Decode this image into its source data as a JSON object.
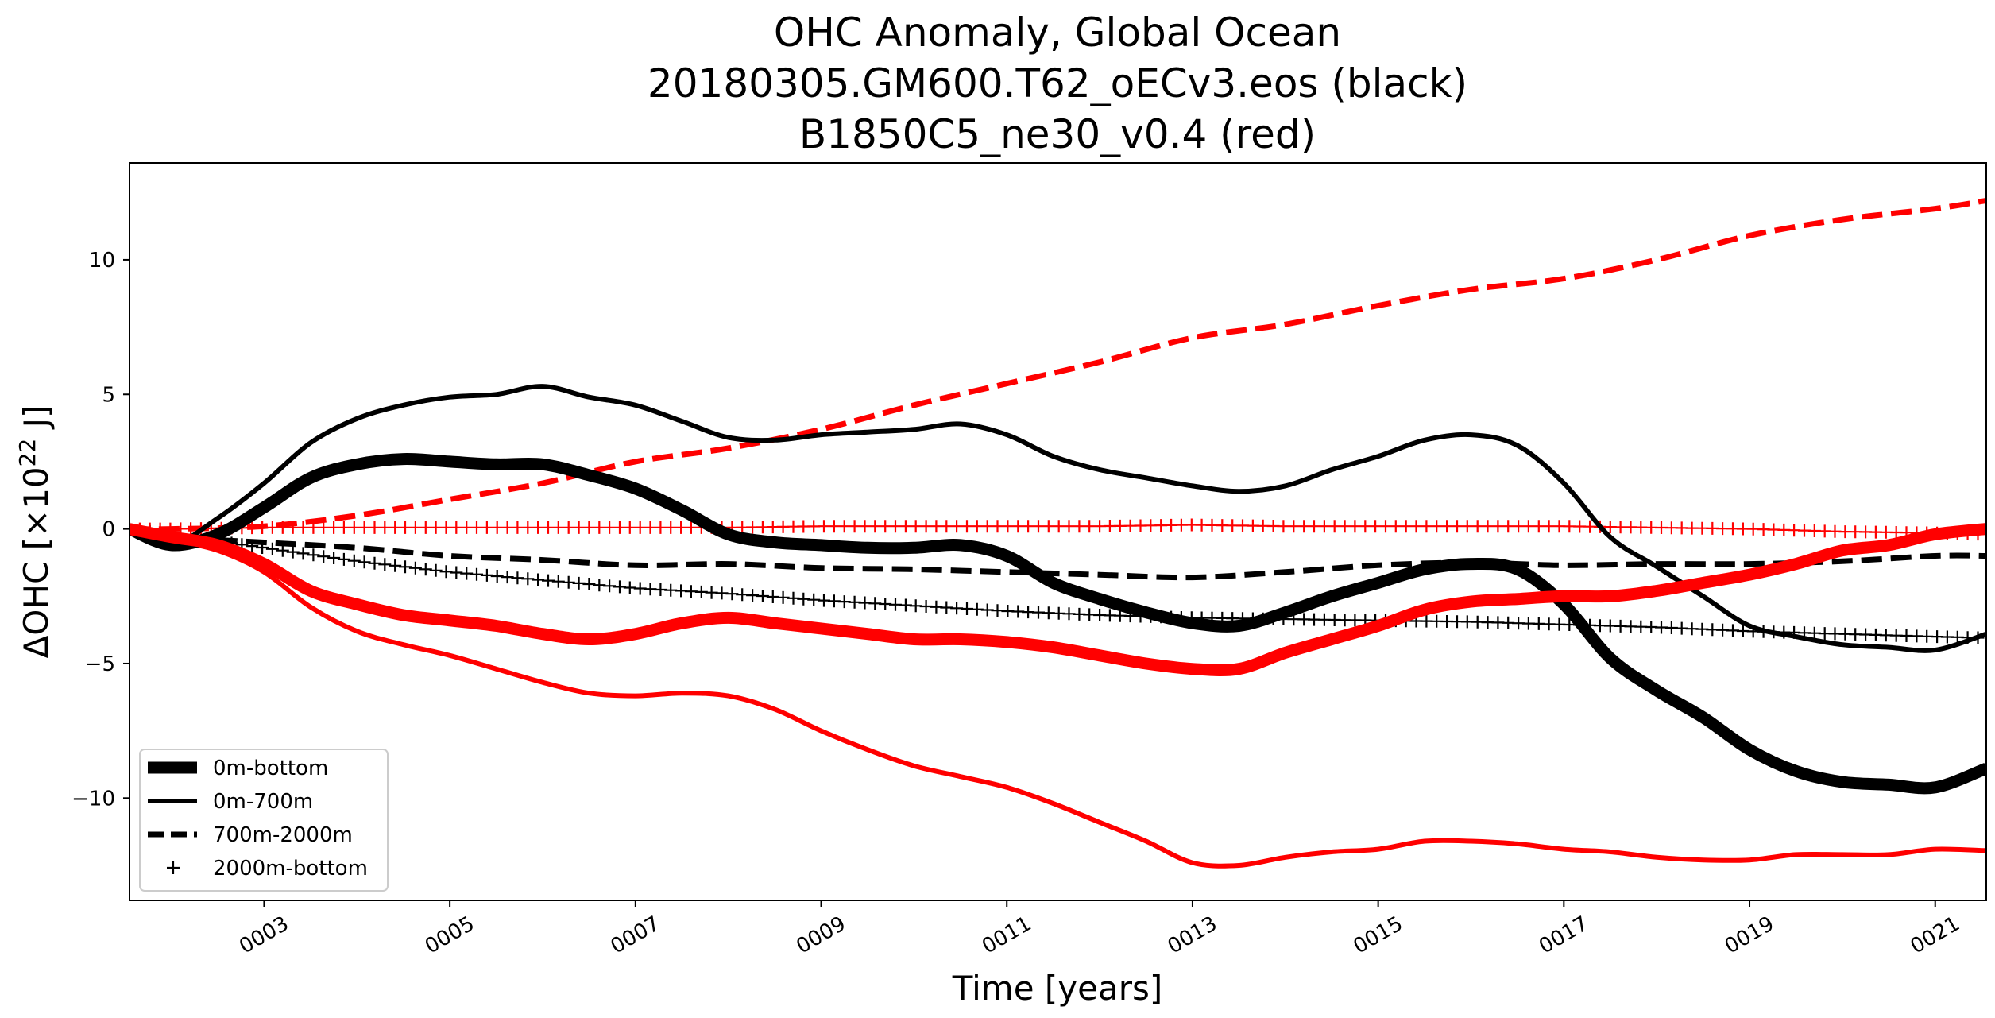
{
  "chart_data": {
    "type": "line",
    "title_lines": [
      "OHC Anomaly, Global Ocean",
      "20180305.GM600.T62_oECv3.eos (black)",
      "B1850C5_ne30_v0.4 (red)"
    ],
    "xlabel": "Time [years]",
    "ylabel_main": "ΔOHC [×10",
    "ylabel_sup": "22",
    "ylabel_end": " J]",
    "xlim": [
      1.55,
      21.55
    ],
    "ylim": [
      -13.8,
      13.6
    ],
    "x_ticks": [
      3,
      5,
      7,
      9,
      11,
      13,
      15,
      17,
      19,
      21
    ],
    "x_tick_labels": [
      "0003",
      "0005",
      "0007",
      "0009",
      "0011",
      "0013",
      "0015",
      "0017",
      "0019",
      "0021"
    ],
    "y_ticks": [
      -10,
      -5,
      0,
      5,
      10
    ],
    "y_tick_labels": [
      "−10",
      "−5",
      "0",
      "5",
      "10"
    ],
    "legend": {
      "position": "lower-left",
      "entries": [
        {
          "label": "0m-bottom",
          "style": "thick"
        },
        {
          "label": "0m-700m",
          "style": "solid"
        },
        {
          "label": "700m-2000m",
          "style": "dashed"
        },
        {
          "label": "2000m-bottom",
          "style": "plus"
        }
      ]
    },
    "series": [
      {
        "name": "black 0m-bottom",
        "color": "#000000",
        "style": "thick",
        "x": [
          1.55,
          2,
          2.5,
          3,
          3.5,
          4,
          4.5,
          5,
          5.5,
          6,
          6.5,
          7,
          7.5,
          8,
          8.5,
          9,
          9.5,
          10,
          10.5,
          11,
          11.5,
          12,
          12.5,
          13,
          13.5,
          14,
          14.5,
          15,
          15.5,
          16,
          16.5,
          17,
          17.5,
          18,
          18.5,
          19,
          19.5,
          20,
          20.5,
          21,
          21.55
        ],
        "y": [
          0,
          -0.6,
          -0.2,
          0.8,
          1.9,
          2.4,
          2.6,
          2.5,
          2.4,
          2.4,
          2,
          1.5,
          0.7,
          -0.2,
          -0.5,
          -0.6,
          -0.7,
          -0.7,
          -0.6,
          -1,
          -2,
          -2.6,
          -3.1,
          -3.5,
          -3.6,
          -3.1,
          -2.5,
          -2,
          -1.5,
          -1.3,
          -1.5,
          -2.8,
          -4.8,
          -6,
          -7,
          -8.2,
          -9,
          -9.4,
          -9.5,
          -9.6,
          -8.9
        ]
      },
      {
        "name": "black 0m-700m",
        "color": "#000000",
        "style": "solid",
        "x": [
          1.55,
          2,
          2.5,
          3,
          3.5,
          4,
          4.5,
          5,
          5.5,
          6,
          6.5,
          7,
          7.5,
          8,
          8.5,
          9,
          9.5,
          10,
          10.5,
          11,
          11.5,
          12,
          12.5,
          13,
          13.5,
          14,
          14.5,
          15,
          15.5,
          16,
          16.5,
          17,
          17.5,
          18,
          18.5,
          19,
          19.5,
          20,
          20.5,
          21,
          21.55
        ],
        "y": [
          0,
          -0.6,
          0.4,
          1.7,
          3.2,
          4.1,
          4.6,
          4.9,
          5,
          5.3,
          4.9,
          4.6,
          4,
          3.4,
          3.3,
          3.5,
          3.6,
          3.7,
          3.9,
          3.5,
          2.7,
          2.2,
          1.9,
          1.6,
          1.4,
          1.6,
          2.2,
          2.7,
          3.3,
          3.5,
          3.1,
          1.7,
          -0.3,
          -1.4,
          -2.5,
          -3.6,
          -4,
          -4.3,
          -4.4,
          -4.5,
          -3.9
        ]
      },
      {
        "name": "black 700m-2000m",
        "color": "#000000",
        "style": "dashed",
        "x": [
          1.55,
          2,
          3,
          4,
          5,
          6,
          7,
          8,
          9,
          10,
          11,
          12,
          13,
          14,
          15,
          16,
          17,
          18,
          19,
          20,
          21,
          21.55
        ],
        "y": [
          0,
          -0.3,
          -0.5,
          -0.7,
          -1,
          -1.15,
          -1.35,
          -1.3,
          -1.45,
          -1.5,
          -1.6,
          -1.7,
          -1.8,
          -1.6,
          -1.35,
          -1.25,
          -1.35,
          -1.3,
          -1.3,
          -1.2,
          -1,
          -1
        ]
      },
      {
        "name": "black 2000m-bottom",
        "color": "#000000",
        "style": "plus",
        "x": [
          1.55,
          2,
          3,
          4,
          5,
          6,
          7,
          8,
          9,
          10,
          11,
          12,
          13,
          14,
          15,
          16,
          17,
          18,
          19,
          20,
          21,
          21.55
        ],
        "y": [
          0,
          -0.2,
          -0.7,
          -1.2,
          -1.6,
          -1.9,
          -2.2,
          -2.4,
          -2.65,
          -2.85,
          -3.05,
          -3.2,
          -3.3,
          -3.35,
          -3.4,
          -3.45,
          -3.55,
          -3.65,
          -3.8,
          -3.9,
          -4,
          -4.05
        ]
      },
      {
        "name": "red 0m-bottom",
        "color": "#ff0000",
        "style": "thick",
        "x": [
          1.55,
          2,
          2.5,
          3,
          3.5,
          4,
          4.5,
          5,
          5.5,
          6,
          6.5,
          7,
          7.5,
          8,
          8.5,
          9,
          9.5,
          10,
          10.5,
          11,
          11.5,
          12,
          12.5,
          13,
          13.5,
          14,
          14.5,
          15,
          15.5,
          16,
          16.5,
          17,
          17.5,
          18,
          18.5,
          19,
          19.5,
          20,
          20.5,
          21,
          21.55
        ],
        "y": [
          0,
          -0.3,
          -0.6,
          -1.3,
          -2.3,
          -2.8,
          -3.2,
          -3.4,
          -3.6,
          -3.9,
          -4.1,
          -3.9,
          -3.5,
          -3.3,
          -3.5,
          -3.7,
          -3.9,
          -4.1,
          -4.1,
          -4.2,
          -4.4,
          -4.7,
          -5,
          -5.2,
          -5.2,
          -4.6,
          -4.1,
          -3.6,
          -3,
          -2.7,
          -2.6,
          -2.5,
          -2.5,
          -2.3,
          -2,
          -1.7,
          -1.3,
          -0.8,
          -0.6,
          -0.2,
          0
        ]
      },
      {
        "name": "red 0m-700m",
        "color": "#ff0000",
        "style": "solid",
        "x": [
          1.55,
          2,
          2.5,
          3,
          3.5,
          4,
          4.5,
          5,
          5.5,
          6,
          6.5,
          7,
          7.5,
          8,
          8.5,
          9,
          9.5,
          10,
          10.5,
          11,
          11.5,
          12,
          12.5,
          13,
          13.5,
          14,
          14.5,
          15,
          15.5,
          16,
          16.5,
          17,
          17.5,
          18,
          18.5,
          19,
          19.5,
          20,
          20.5,
          21,
          21.55
        ],
        "y": [
          0,
          -0.4,
          -0.8,
          -1.6,
          -2.9,
          -3.8,
          -4.3,
          -4.7,
          -5.2,
          -5.7,
          -6.1,
          -6.2,
          -6.1,
          -6.2,
          -6.7,
          -7.5,
          -8.2,
          -8.8,
          -9.2,
          -9.6,
          -10.2,
          -10.9,
          -11.6,
          -12.4,
          -12.5,
          -12.2,
          -12,
          -11.9,
          -11.6,
          -11.6,
          -11.7,
          -11.9,
          -12,
          -12.2,
          -12.3,
          -12.3,
          -12.1,
          -12.1,
          -12.1,
          -11.9,
          -11.95
        ]
      },
      {
        "name": "red 700m-2000m",
        "color": "#ff0000",
        "style": "dashed",
        "x": [
          1.55,
          2,
          3,
          4,
          5,
          6,
          7,
          8,
          9,
          10,
          11,
          12,
          13,
          14,
          15,
          16,
          17,
          18,
          19,
          20,
          21,
          21.55
        ],
        "y": [
          0,
          0,
          0.1,
          0.5,
          1.1,
          1.7,
          2.5,
          3,
          3.7,
          4.6,
          5.4,
          6.2,
          7.1,
          7.6,
          8.3,
          8.9,
          9.3,
          10,
          10.9,
          11.5,
          11.9,
          12.2
        ]
      },
      {
        "name": "red 2000m-bottom",
        "color": "#ff0000",
        "style": "plus",
        "x": [
          1.55,
          2,
          3,
          4,
          5,
          6,
          7,
          8,
          9,
          10,
          11,
          12,
          13,
          14,
          15,
          16,
          17,
          18,
          19,
          20,
          21,
          21.55
        ],
        "y": [
          0,
          0,
          0.05,
          0.05,
          0.05,
          0.05,
          0.05,
          0.05,
          0.1,
          0.1,
          0.1,
          0.1,
          0.15,
          0.1,
          0.1,
          0.1,
          0.1,
          0.05,
          0,
          -0.1,
          -0.15,
          -0.2
        ]
      }
    ]
  }
}
